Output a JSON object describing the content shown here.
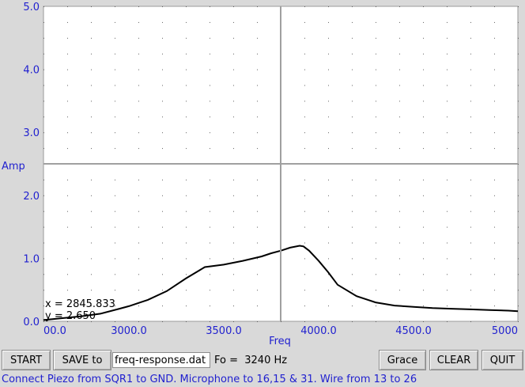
{
  "chart_data": {
    "type": "line",
    "xlabel": "Freq",
    "ylabel": "Amp",
    "xlim": [
      2550,
      5050
    ],
    "ylim": [
      0,
      5
    ],
    "x_ticks": [
      "00.0",
      "3000.0",
      "3500.0",
      "4000.0",
      "4500.0",
      "5000"
    ],
    "x_tick_values": [
      2550,
      3000,
      3500,
      4000,
      4500,
      5000
    ],
    "y_ticks": [
      "0.0",
      "1.0",
      "2.0",
      "3.0",
      "4.0",
      "5.0"
    ],
    "y_tick_values": [
      0,
      1,
      2,
      3,
      4,
      5
    ],
    "grid": true,
    "series": [
      {
        "color": "#000000",
        "x": [
          2550,
          2650,
          2750,
          2850,
          2950,
          3000,
          3100,
          3200,
          3300,
          3400,
          3500,
          3600,
          3700,
          3750,
          3800,
          3850,
          3900,
          3920,
          3950,
          4000,
          4050,
          4100,
          4200,
          4300,
          4400,
          4500,
          4600,
          4700,
          4800,
          4900,
          5000,
          5050
        ],
        "y": [
          0.02,
          0.05,
          0.08,
          0.12,
          0.2,
          0.24,
          0.34,
          0.48,
          0.68,
          0.86,
          0.9,
          0.96,
          1.03,
          1.08,
          1.12,
          1.17,
          1.2,
          1.19,
          1.12,
          0.96,
          0.78,
          0.58,
          0.4,
          0.3,
          0.25,
          0.23,
          0.21,
          0.2,
          0.19,
          0.18,
          0.17,
          0.16
        ]
      }
    ]
  },
  "readout": {
    "x_text": "x = 2845.833",
    "y_text": "y = 2.650"
  },
  "toolbar": {
    "start_label": "START",
    "save_label": "SAVE to",
    "filename_value": "freq-response.dat",
    "fo_text": "Fo =  3240 Hz",
    "grace_label": "Grace",
    "clear_label": "CLEAR",
    "quit_label": "QUIT"
  },
  "status": {
    "text": "Connect Piezo from SQR1 to GND. Microphone to 16,15 & 31. Wire from 13 to 26"
  },
  "colors": {
    "axis_text": "#1f1fcf",
    "plot_background": "#ffffff",
    "window_background": "#d9d9d9",
    "trace": "#000000",
    "crosshair": "#a0a0a0"
  }
}
